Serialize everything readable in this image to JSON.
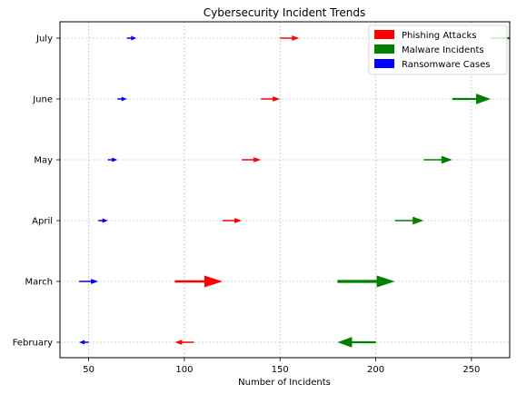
{
  "chart_data": {
    "type": "quiver",
    "title": "Cybersecurity Incident Trends",
    "xlabel": "Number of Incidents",
    "ylabel": "",
    "xlim": [
      35,
      270
    ],
    "x_ticks": [
      50,
      100,
      150,
      200,
      250
    ],
    "categories": [
      "February",
      "March",
      "April",
      "May",
      "June",
      "July"
    ],
    "grid": true,
    "legend_position": "upper right",
    "series": [
      {
        "name": "Phishing Attacks",
        "color": "#ff0000",
        "arrows": [
          {
            "category": "February",
            "x_start": 105,
            "x_end": 95
          },
          {
            "category": "March",
            "x_start": 95,
            "x_end": 120
          },
          {
            "category": "April",
            "x_start": 120,
            "x_end": 130
          },
          {
            "category": "May",
            "x_start": 130,
            "x_end": 140
          },
          {
            "category": "June",
            "x_start": 140,
            "x_end": 150
          },
          {
            "category": "July",
            "x_start": 150,
            "x_end": 160
          }
        ]
      },
      {
        "name": "Malware Incidents",
        "color": "#008000",
        "arrows": [
          {
            "category": "February",
            "x_start": 200,
            "x_end": 180
          },
          {
            "category": "March",
            "x_start": 180,
            "x_end": 210
          },
          {
            "category": "April",
            "x_start": 210,
            "x_end": 225
          },
          {
            "category": "May",
            "x_start": 225,
            "x_end": 240
          },
          {
            "category": "June",
            "x_start": 240,
            "x_end": 260
          },
          {
            "category": "July",
            "x_start": 260,
            "x_end": 280
          }
        ]
      },
      {
        "name": "Ransomware Cases",
        "color": "#0000ff",
        "arrows": [
          {
            "category": "February",
            "x_start": 50,
            "x_end": 45
          },
          {
            "category": "March",
            "x_start": 45,
            "x_end": 55
          },
          {
            "category": "April",
            "x_start": 55,
            "x_end": 60
          },
          {
            "category": "May",
            "x_start": 60,
            "x_end": 65
          },
          {
            "category": "June",
            "x_start": 65,
            "x_end": 70
          },
          {
            "category": "July",
            "x_start": 70,
            "x_end": 75
          }
        ]
      }
    ]
  }
}
